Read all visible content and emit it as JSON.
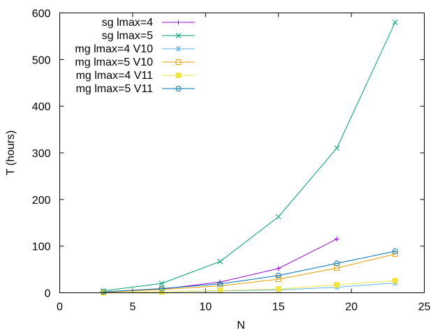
{
  "chart_data": {
    "type": "line",
    "title": "",
    "xlabel": "N",
    "ylabel": "T (hours)",
    "xlim": [
      0,
      25
    ],
    "ylim": [
      0,
      600
    ],
    "xticks": [
      0,
      5,
      10,
      15,
      20,
      25
    ],
    "yticks": [
      0,
      100,
      200,
      300,
      400,
      500,
      600
    ],
    "grid": false,
    "legend_position": "top-left",
    "series": [
      {
        "name": "sg lmax=4",
        "color": "#9400d3",
        "marker": "plus",
        "x": [
          3,
          7,
          11,
          15,
          19
        ],
        "y": [
          2,
          8,
          23,
          52,
          115
        ]
      },
      {
        "name": "sg lmax=5",
        "color": "#009e73",
        "marker": "cross",
        "x": [
          3,
          7,
          11,
          15,
          19,
          23
        ],
        "y": [
          4,
          20,
          67,
          163,
          310,
          580
        ]
      },
      {
        "name": "mg lmax=4 V10",
        "color": "#56b4e9",
        "marker": "star",
        "x": [
          3,
          7,
          11,
          15,
          19,
          23
        ],
        "y": [
          0,
          2,
          4,
          6,
          12,
          21
        ]
      },
      {
        "name": "mg lmax=5 V10",
        "color": "#e69f00",
        "marker": "square-open",
        "x": [
          3,
          7,
          11,
          15,
          19,
          23
        ],
        "y": [
          1,
          7,
          15,
          29,
          53,
          83
        ]
      },
      {
        "name": "mg lmax=4 V11",
        "color": "#f0e442",
        "marker": "square-filled",
        "x": [
          3,
          7,
          11,
          15,
          19,
          23
        ],
        "y": [
          0,
          2,
          5,
          8,
          17,
          26
        ]
      },
      {
        "name": "mg lmax=5 V11",
        "color": "#0072b2",
        "marker": "circle-open",
        "x": [
          3,
          7,
          11,
          15,
          19,
          23
        ],
        "y": [
          2,
          9,
          19,
          37,
          63,
          89
        ]
      }
    ]
  }
}
